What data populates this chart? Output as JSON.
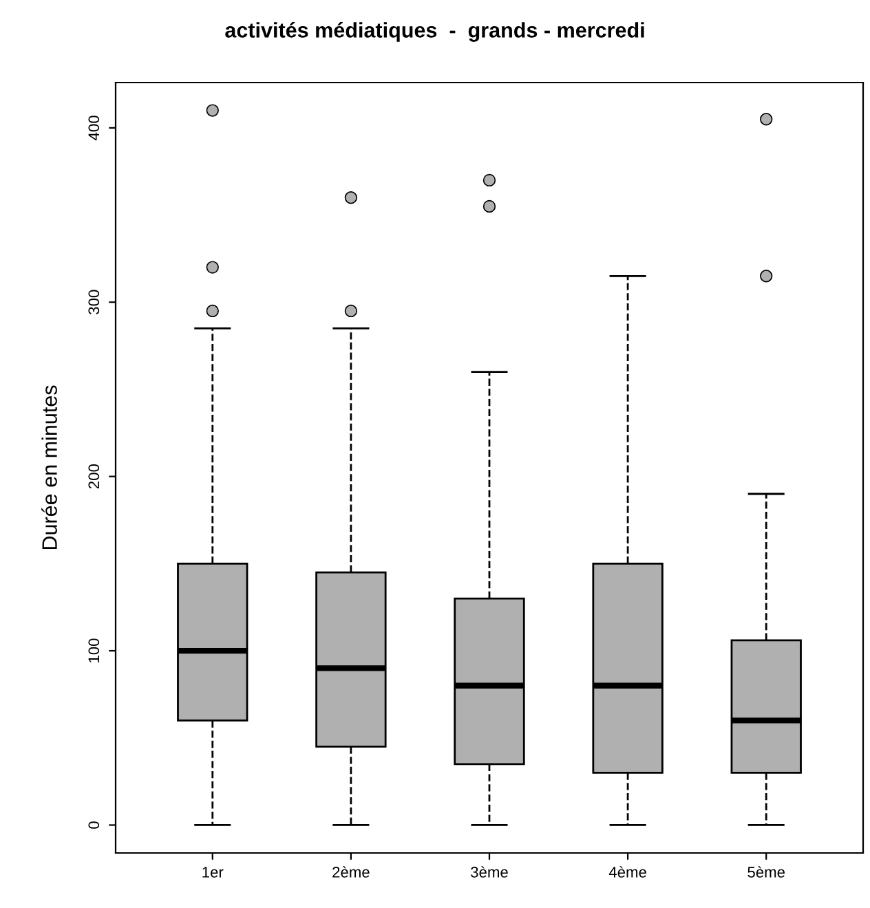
{
  "chart_data": {
    "type": "box",
    "title": "activités médiatiques  -  grands - mercredi",
    "ylabel": "Durée en minutes",
    "categories": [
      "1er",
      "2ème",
      "3ème",
      "4ème",
      "5ème"
    ],
    "boxes": [
      {
        "low": 0,
        "q1": 60,
        "median": 100,
        "q3": 150,
        "high": 285,
        "outliers": [
          295,
          320,
          410
        ]
      },
      {
        "low": 0,
        "q1": 45,
        "median": 90,
        "q3": 145,
        "high": 285,
        "outliers": [
          295,
          360
        ]
      },
      {
        "low": 0,
        "q1": 35,
        "median": 80,
        "q3": 130,
        "high": 260,
        "outliers": [
          355,
          370
        ]
      },
      {
        "low": 0,
        "q1": 30,
        "median": 80,
        "q3": 150,
        "high": 315
      },
      {
        "low": 0,
        "q1": 30,
        "median": 60,
        "q3": 106,
        "high": 190,
        "outliers": [
          315,
          405
        ]
      }
    ],
    "color": "#b0b0b0",
    "ylim": [
      -16,
      426
    ],
    "yticks": [
      0,
      100,
      200,
      300,
      400
    ],
    "grid": false,
    "line_style": "dashed"
  }
}
